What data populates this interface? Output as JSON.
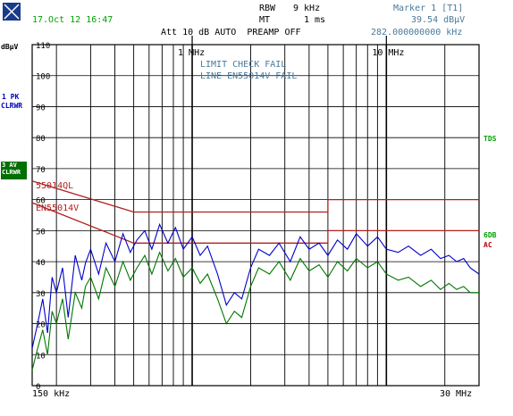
{
  "header": {
    "datetime": "17.Oct 12 16:47",
    "rbw_label": "RBW",
    "rbw_value": "9 kHz",
    "mt_label": "MT",
    "mt_value": "1 ms",
    "marker_title": "Marker 1 [T1]",
    "marker_level": "39.54 dBµV",
    "marker_freq": "282.000000000 kHz",
    "settings": "Att 10 dB AUTO  PREAMP OFF"
  },
  "left_labels": {
    "unit": "dBµV",
    "trace1_line1": "1 PK",
    "trace1_line2": "CLRWR",
    "trace3_line1": "3 AV",
    "trace3_line2": "CLRWR"
  },
  "right_labels": {
    "tds": "TDS",
    "sdb": "6DB",
    "ac": "AC"
  },
  "annotations": {
    "limit_check": "LIMIT CHECK   FAIL",
    "line_fail": "LINE EN55014V FAIL",
    "limit_ql": "55014QL",
    "limit_v": "EN55014V"
  },
  "colors": {
    "trace_pk": "#0000cc",
    "trace_av": "#007700",
    "limit_line": "#b02020",
    "grid": "#000000"
  },
  "chart_data": {
    "type": "line",
    "x_scale": "log",
    "xlim_hz": [
      150000,
      30000000
    ],
    "ylim": [
      0,
      110
    ],
    "ylabel": "dBµV",
    "x_start_label": "150 kHz",
    "x_stop_label": "30 MHz",
    "x_marks": [
      {
        "freq_hz": 1000000,
        "label": "1 MHz"
      },
      {
        "freq_hz": 10000000,
        "label": "10 MHz"
      }
    ],
    "y_ticks": [
      {
        "value": 110,
        "label": "110"
      },
      {
        "value": 100,
        "label": "100"
      },
      {
        "value": 90,
        "label": "90"
      },
      {
        "value": 80,
        "label": "80"
      },
      {
        "value": 70,
        "label": "70"
      },
      {
        "value": 60,
        "label": "60"
      },
      {
        "value": 50,
        "label": "50"
      },
      {
        "value": 40,
        "label": "40"
      },
      {
        "value": 30,
        "label": "30"
      },
      {
        "value": 20,
        "label": "20"
      },
      {
        "value": 10,
        "label": "10"
      },
      {
        "value": 0,
        "label": "0"
      }
    ],
    "grid": true,
    "limit_lines": [
      {
        "name": "55014QL",
        "points": [
          [
            150000,
            66
          ],
          [
            500000,
            56
          ],
          [
            5000000,
            56
          ],
          [
            5000000,
            60
          ],
          [
            30000000,
            60
          ]
        ]
      },
      {
        "name": "EN55014V",
        "points": [
          [
            150000,
            59
          ],
          [
            500000,
            46
          ],
          [
            5000000,
            46
          ],
          [
            5000000,
            50
          ],
          [
            30000000,
            50
          ]
        ]
      }
    ],
    "series": [
      {
        "name": "1 PK",
        "color": "#0000cc",
        "x": [
          150000,
          160000,
          170000,
          180000,
          190000,
          200000,
          215000,
          230000,
          250000,
          270000,
          282000,
          300000,
          330000,
          360000,
          400000,
          440000,
          480000,
          520000,
          570000,
          620000,
          680000,
          750000,
          820000,
          900000,
          1000000,
          1100000,
          1200000,
          1350000,
          1500000,
          1650000,
          1800000,
          2000000,
          2200000,
          2500000,
          2800000,
          3200000,
          3600000,
          4000000,
          4500000,
          5000000,
          5600000,
          6300000,
          7000000,
          8000000,
          9000000,
          10000000,
          11500000,
          13000000,
          15000000,
          17000000,
          19000000,
          21000000,
          23000000,
          25000000,
          27000000,
          30000000
        ],
        "values": [
          12,
          20,
          28,
          17,
          35,
          30,
          38,
          22,
          42,
          34,
          39.5,
          44,
          36,
          46,
          40,
          49,
          43,
          47,
          50,
          44,
          52,
          46,
          51,
          44,
          48,
          42,
          45,
          36,
          26,
          30,
          28,
          38,
          44,
          42,
          46,
          40,
          48,
          44,
          46,
          42,
          47,
          44,
          49,
          45,
          48,
          44,
          43,
          45,
          42,
          44,
          41,
          42,
          40,
          41,
          38,
          36
        ]
      },
      {
        "name": "3 AV",
        "color": "#007700",
        "x": [
          150000,
          160000,
          170000,
          180000,
          190000,
          200000,
          215000,
          230000,
          250000,
          270000,
          282000,
          300000,
          330000,
          360000,
          400000,
          440000,
          480000,
          520000,
          570000,
          620000,
          680000,
          750000,
          820000,
          900000,
          1000000,
          1100000,
          1200000,
          1350000,
          1500000,
          1650000,
          1800000,
          2000000,
          2200000,
          2500000,
          2800000,
          3200000,
          3600000,
          4000000,
          4500000,
          5000000,
          5600000,
          6300000,
          7000000,
          8000000,
          9000000,
          10000000,
          11500000,
          13000000,
          15000000,
          17000000,
          19000000,
          21000000,
          23000000,
          25000000,
          27000000,
          30000000
        ],
        "values": [
          5,
          12,
          18,
          10,
          24,
          20,
          28,
          15,
          30,
          25,
          32,
          35,
          28,
          38,
          32,
          40,
          34,
          38,
          42,
          36,
          43,
          37,
          41,
          35,
          38,
          33,
          36,
          28,
          20,
          24,
          22,
          32,
          38,
          36,
          40,
          34,
          41,
          37,
          39,
          35,
          40,
          37,
          41,
          38,
          40,
          36,
          34,
          35,
          32,
          34,
          31,
          33,
          31,
          32,
          30,
          30
        ]
      }
    ]
  }
}
